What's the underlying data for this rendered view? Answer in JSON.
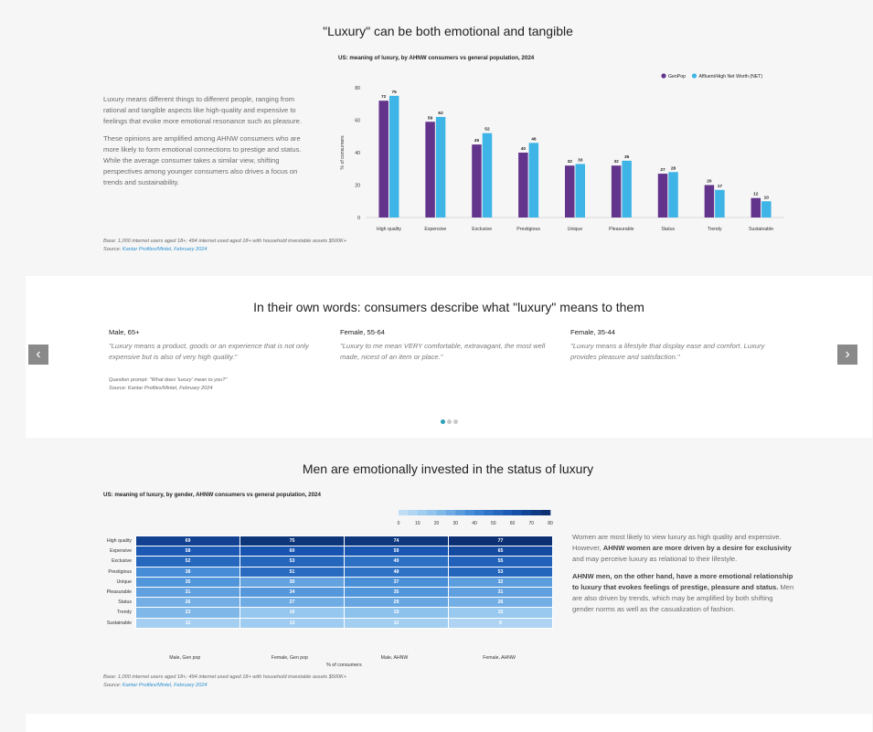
{
  "section1": {
    "title": "\"Luxury\" can be both emotional and tangible",
    "paragraph1": "Luxury means different things to different people, ranging from rational and tangible aspects like high-quality and expensive to feelings that evoke more emotional resonance such as pleasure.",
    "paragraph2": "These opinions are amplified among AHNW consumers who are more likely to form emotional connections to prestige and status. While the average consumer takes a similar view, shifting perspectives among younger consumers also drives a focus on trends and sustainability.",
    "base": "Base: 1,000 internet users aged 18+; 494 internet used aged 18+ with household investable assets $500K+",
    "source_label": "Source: ",
    "source": "Kantar Profiles/Mintel, February 2024"
  },
  "section2": {
    "title": "In their own words: consumers describe what \"luxury\" means to them",
    "quotes": [
      {
        "who": "Male, 65+",
        "text": "\"Luxury means a product, goods or an experience that is not only expensive but is also of very high quality.\""
      },
      {
        "who": "Female, 55-64",
        "text": "\"Luxury to me mean VERY comfortable, extravagant, the most well made, nicest of an item or place.\""
      },
      {
        "who": "Female, 35-44",
        "text": "\"Luxury means a lifestyle that display ease and comfort. Luxury provides pleasure and satisfaction.\""
      }
    ],
    "prompt": "Question prompt: \"What does 'luxury' mean to you?\"",
    "source": "Source: Kantar Profiles/Mintel, February 2024",
    "prev_icon": "chevron-left-icon",
    "next_icon": "chevron-right-icon",
    "prev_glyph": "‹",
    "next_glyph": "›",
    "active_dot": 0,
    "dot_count": 3
  },
  "section3": {
    "title": "Men are emotionally invested in the status of luxury",
    "para1_a": "Women are most likely to view luxury as high quality and expensive. However, ",
    "para1_b": "AHNW women are more driven by a desire for exclusivity",
    "para1_c": " and may perceive luxury as relational to their lifestyle.",
    "para2_a": "AHNW men, on the other hand, have a more emotional relationship to luxury that evokes feelings of prestige, pleasure and status.",
    "para2_b": " Men are also driven by trends, which may be amplified by both shifting gender norms as well as the casualization of fashion.",
    "base": "Base: 1,000 internet users aged 18+; 494 internet used aged 18+ with household investable assets $500K+",
    "source_label": "Source: ",
    "source": "Kantar Profiles/Mintel, February 2024"
  },
  "chart_data": [
    {
      "type": "bar",
      "title": "US: meaning of luxury, by AHNW consumers vs general population, 2024",
      "ylabel": "% of consumers",
      "xlabel": "",
      "ylim": [
        0,
        80
      ],
      "yticks": [
        0,
        20,
        40,
        60,
        80
      ],
      "legend_position": "top-right",
      "categories": [
        "High quality",
        "Expensive",
        "Exclusive",
        "Prestigious",
        "Unique",
        "Pleasurable",
        "Status",
        "Trendy",
        "Sustainable"
      ],
      "series": [
        {
          "name": "GenPop",
          "color": "#62348c",
          "values": [
            72,
            59,
            45,
            40,
            32,
            32,
            27,
            20,
            12
          ]
        },
        {
          "name": "Affluent/High Net Worth (NET)",
          "color": "#3eb5e6",
          "values": [
            75,
            62,
            52,
            46,
            33,
            35,
            28,
            17,
            10
          ]
        }
      ]
    },
    {
      "type": "heatmap",
      "title": "US: meaning of luxury, by gender, AHNW consumers vs general population, 2024",
      "xlabel": "% of consumers",
      "scale_ticks": [
        0,
        10,
        20,
        30,
        40,
        50,
        60,
        70,
        80
      ],
      "scale_range": [
        0,
        80
      ],
      "rows": [
        "High quality",
        "Expensive",
        "Exclusive",
        "Prestigious",
        "Unique",
        "Pleasurable",
        "Status",
        "Trendy",
        "Sustainable"
      ],
      "columns": [
        "Male, Gen pop",
        "Female, Gen pop",
        "Male, AHNW",
        "Female, AHNW"
      ],
      "values": [
        [
          69,
          75,
          74,
          77
        ],
        [
          58,
          60,
          59,
          65
        ],
        [
          52,
          53,
          49,
          55
        ],
        [
          38,
          51,
          48,
          53
        ],
        [
          35,
          30,
          37,
          32
        ],
        [
          31,
          34,
          35,
          31
        ],
        [
          26,
          27,
          29,
          26
        ],
        [
          23,
          16,
          19,
          15
        ],
        [
          11,
          13,
          12,
          8
        ]
      ]
    }
  ]
}
